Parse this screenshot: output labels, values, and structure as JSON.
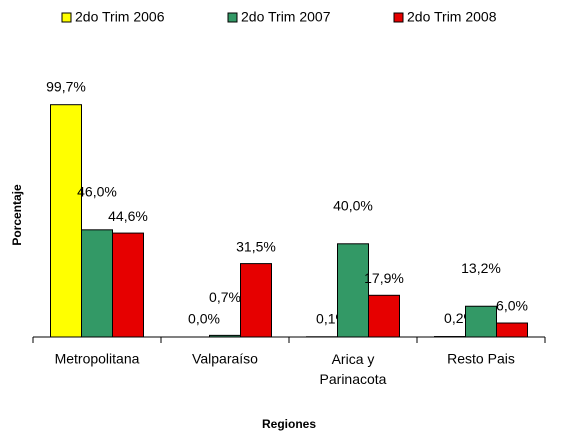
{
  "chart_data": {
    "type": "bar",
    "categories": [
      "Metropolitana",
      "Valparaíso",
      "Arica y Parinacota",
      "Resto Pais"
    ],
    "series": [
      {
        "name": "2do Trim 2006",
        "color": "#ffff00",
        "values": [
          99.7,
          0.0,
          0.1,
          0.2
        ],
        "value_labels": [
          "99,7%",
          "0,0%",
          "0,1%",
          "0,2%"
        ]
      },
      {
        "name": "2do Trim 2007",
        "color": "#339966",
        "values": [
          46.0,
          0.7,
          40.0,
          13.2
        ],
        "value_labels": [
          "46,0%",
          "0,7%",
          "40,0%",
          "13,2%"
        ]
      },
      {
        "name": "2do Trim 2008",
        "color": "#e60000",
        "values": [
          44.6,
          31.5,
          17.9,
          6.0
        ],
        "value_labels": [
          "44,6%",
          "31,5%",
          "17,9%",
          "6,0%"
        ]
      }
    ],
    "ylim": [
      0,
      100
    ],
    "x_label": "Regiones",
    "y_label": "Porcentaje",
    "legend": "top"
  }
}
